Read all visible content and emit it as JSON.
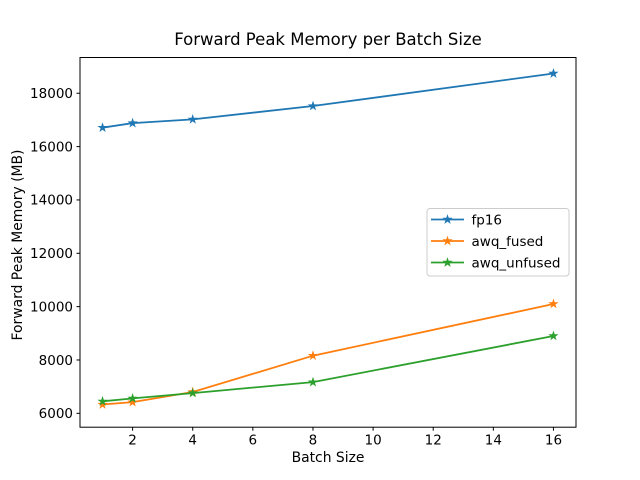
{
  "chart_data": {
    "type": "line",
    "title": "Forward Peak Memory per Batch Size",
    "xlabel": "Batch Size",
    "ylabel": "Forward Peak Memory (MB)",
    "x": [
      1,
      2,
      4,
      8,
      16
    ],
    "series": [
      {
        "name": "fp16",
        "color": "#1f77b4",
        "values": [
          16710,
          16880,
          17020,
          17520,
          18740
        ]
      },
      {
        "name": "awq_fused",
        "color": "#ff7f0e",
        "values": [
          6330,
          6420,
          6800,
          8160,
          10100
        ]
      },
      {
        "name": "awq_unfused",
        "color": "#2ca02c",
        "values": [
          6450,
          6560,
          6760,
          7170,
          8900
        ]
      }
    ],
    "marker": "star",
    "xlim": [
      0.25,
      16.75
    ],
    "ylim": [
      5480,
      19340
    ],
    "xticks": [
      2,
      4,
      6,
      8,
      10,
      12,
      14,
      16
    ],
    "yticks": [
      6000,
      8000,
      10000,
      12000,
      14000,
      16000,
      18000
    ],
    "grid": false,
    "legend_position": "center-right",
    "background_color": "#ffffff",
    "frame_color": "#000000",
    "legend_border_color": "#cccccc"
  }
}
